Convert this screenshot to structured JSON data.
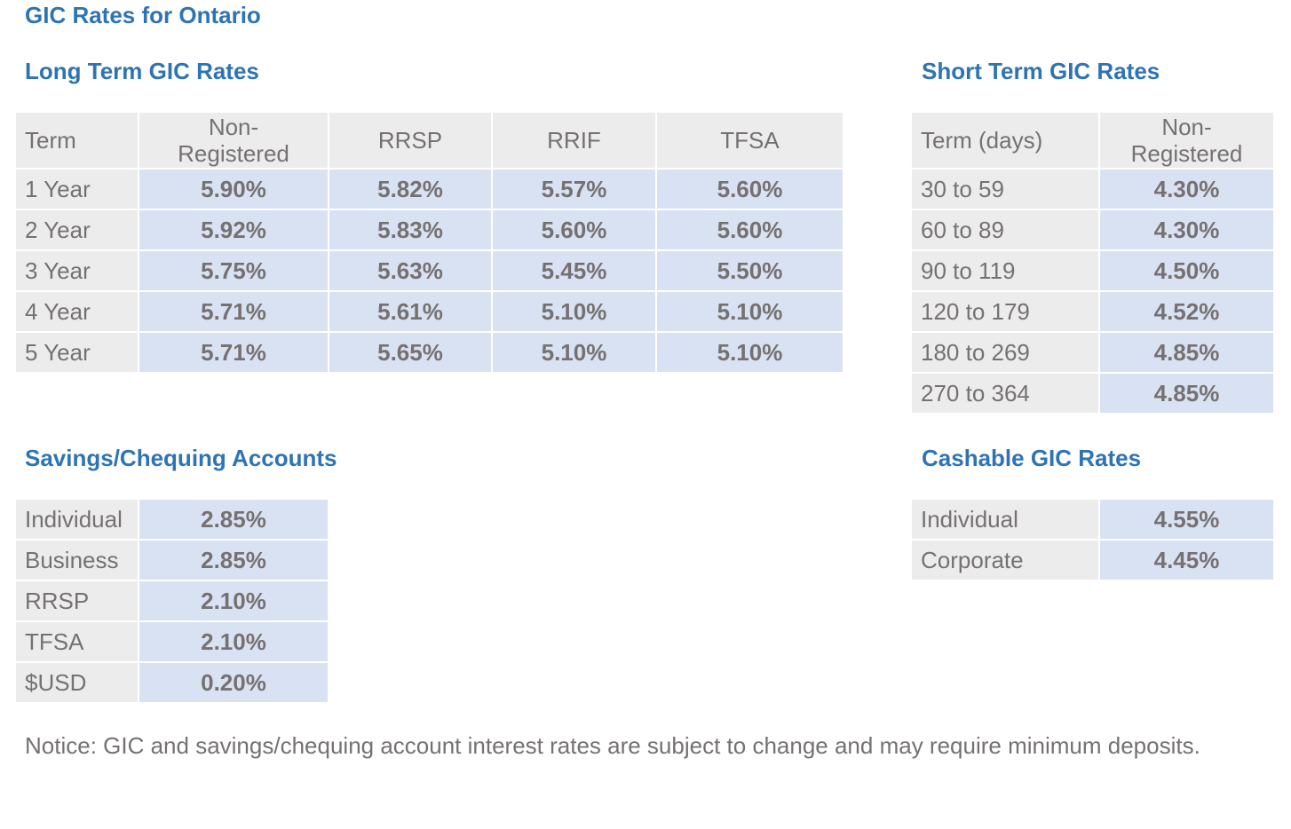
{
  "page_title": "GIC Rates for Ontario",
  "long_term": {
    "title": "Long Term GIC Rates",
    "headers": [
      "Term",
      "Non-\nRegistered",
      "RRSP",
      "RRIF",
      "TFSA"
    ],
    "rows": [
      [
        "1 Year",
        "5.90%",
        "5.82%",
        "5.57%",
        "5.60%"
      ],
      [
        "2 Year",
        "5.92%",
        "5.83%",
        "5.60%",
        "5.60%"
      ],
      [
        "3 Year",
        "5.75%",
        "5.63%",
        "5.45%",
        "5.50%"
      ],
      [
        "4 Year",
        "5.71%",
        "5.61%",
        "5.10%",
        "5.10%"
      ],
      [
        "5 Year",
        "5.71%",
        "5.65%",
        "5.10%",
        "5.10%"
      ]
    ]
  },
  "short_term": {
    "title": "Short Term GIC Rates",
    "headers": [
      "Term (days)",
      "Non-\nRegistered"
    ],
    "rows": [
      [
        "30 to 59",
        "4.30%"
      ],
      [
        "60 to 89",
        "4.30%"
      ],
      [
        "90 to 119",
        "4.50%"
      ],
      [
        "120 to 179",
        "4.52%"
      ],
      [
        "180 to 269",
        "4.85%"
      ],
      [
        "270 to 364",
        "4.85%"
      ]
    ]
  },
  "savings": {
    "title": "Savings/Chequing Accounts",
    "rows": [
      [
        "Individual",
        "2.85%"
      ],
      [
        "Business",
        "2.85%"
      ],
      [
        "RRSP",
        "2.10%"
      ],
      [
        "TFSA",
        "2.10%"
      ],
      [
        "$USD",
        "0.20%"
      ]
    ]
  },
  "cashable": {
    "title": "Cashable GIC Rates",
    "rows": [
      [
        "Individual",
        "4.55%"
      ],
      [
        "Corporate",
        "4.45%"
      ]
    ]
  },
  "notice": "Notice: GIC and savings/chequing account interest rates are subject to change and may require minimum deposits."
}
